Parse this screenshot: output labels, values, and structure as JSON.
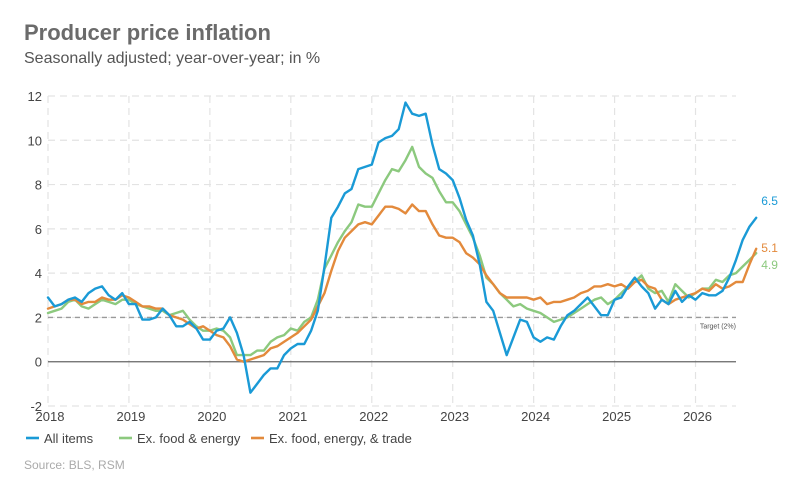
{
  "header": {
    "title": "Producer price inflation",
    "subtitle": "Seasonally adjusted; year-over-year; in %"
  },
  "source": "Source: BLS, RSM",
  "colors": {
    "all_items": "#1a9ad6",
    "ex_food_energy": "#8cc97e",
    "ex_food_energy_trade": "#e38a3c",
    "grid": "#e3e3e3",
    "zero_line": "#666666",
    "target_line": "#9a9a9a"
  },
  "chart_data": {
    "type": "line",
    "title": "Producer price inflation",
    "subtitle": "Seasonally adjusted; year-over-year; in %",
    "xlabel": "",
    "ylabel": "",
    "x_start": "2018-01",
    "x_frequency": "monthly",
    "xlim": [
      2018.0,
      2026.5
    ],
    "ylim": [
      -2,
      12
    ],
    "x_ticks": [
      "2018",
      "2019",
      "2020",
      "2021",
      "2022",
      "2023",
      "2024",
      "2025",
      "2026"
    ],
    "y_ticks": [
      "-2",
      "0",
      "2",
      "4",
      "6",
      "8",
      "10",
      "12"
    ],
    "grid": "dashed",
    "legend_position": "bottom-left",
    "reference_line": {
      "value": 2,
      "label": "Target (2%)"
    },
    "series": [
      {
        "name": "All items",
        "color": "#1a9ad6",
        "end_label": "6.5",
        "values": [
          2.9,
          2.5,
          2.6,
          2.8,
          2.9,
          2.7,
          3.1,
          3.3,
          3.4,
          3.0,
          2.8,
          3.1,
          2.6,
          2.6,
          1.9,
          1.9,
          2.0,
          2.4,
          2.1,
          1.6,
          1.6,
          1.8,
          1.5,
          1.0,
          1.0,
          1.4,
          1.5,
          2.0,
          1.3,
          0.3,
          -1.4,
          -1.0,
          -0.6,
          -0.3,
          -0.3,
          0.3,
          0.6,
          0.8,
          0.8,
          1.4,
          2.3,
          4.3,
          6.5,
          7.0,
          7.6,
          7.8,
          8.7,
          8.8,
          8.9,
          9.9,
          10.1,
          10.2,
          10.5,
          11.7,
          11.2,
          11.1,
          11.2,
          9.8,
          8.7,
          8.5,
          8.2,
          7.4,
          6.4,
          5.7,
          4.4,
          2.7,
          2.3,
          1.3,
          0.3,
          1.1,
          1.9,
          1.8,
          1.1,
          0.9,
          1.1,
          1.0,
          1.6,
          2.1,
          2.3,
          2.6,
          2.9,
          2.5,
          2.1,
          2.1,
          2.8,
          2.9,
          3.4,
          3.8,
          3.4,
          3.1,
          2.4,
          2.8,
          2.6,
          3.2,
          2.7,
          3.0,
          2.8,
          3.1,
          3.0,
          3.0,
          3.2,
          3.8,
          4.6,
          5.5,
          6.1,
          6.5
        ]
      },
      {
        "name": "Ex. food & energy",
        "color": "#8cc97e",
        "end_label": "4.9",
        "values": [
          2.2,
          2.3,
          2.4,
          2.7,
          2.8,
          2.5,
          2.4,
          2.6,
          2.8,
          2.7,
          2.6,
          2.8,
          2.8,
          2.6,
          2.5,
          2.4,
          2.3,
          2.3,
          2.1,
          2.2,
          2.3,
          1.9,
          1.6,
          1.4,
          1.4,
          1.5,
          1.4,
          1.1,
          0.3,
          0.3,
          0.3,
          0.5,
          0.5,
          0.9,
          1.1,
          1.2,
          1.5,
          1.4,
          1.8,
          2.0,
          2.8,
          4.2,
          4.8,
          5.4,
          5.9,
          6.3,
          7.1,
          7.0,
          7.0,
          7.6,
          8.2,
          8.7,
          8.6,
          9.1,
          9.7,
          8.8,
          8.5,
          8.3,
          7.7,
          7.2,
          7.2,
          6.8,
          6.2,
          5.6,
          4.8,
          3.8,
          3.5,
          3.1,
          2.8,
          2.5,
          2.6,
          2.4,
          2.3,
          2.2,
          2.0,
          1.8,
          1.9,
          2.0,
          2.2,
          2.4,
          2.6,
          2.8,
          2.9,
          2.6,
          2.8,
          3.1,
          3.4,
          3.6,
          3.9,
          3.3,
          3.1,
          3.2,
          2.7,
          3.5,
          3.2,
          2.9,
          3.1,
          3.3,
          3.3,
          3.7,
          3.6,
          3.9,
          4.0,
          4.3,
          4.6,
          4.9
        ]
      },
      {
        "name": "Ex. food, energy, & trade",
        "color": "#e38a3c",
        "end_label": "5.1",
        "values": [
          2.4,
          2.5,
          2.6,
          2.8,
          2.8,
          2.6,
          2.7,
          2.7,
          2.9,
          2.8,
          2.8,
          3.0,
          2.9,
          2.7,
          2.5,
          2.5,
          2.4,
          2.4,
          2.1,
          2.0,
          1.9,
          1.7,
          1.5,
          1.6,
          1.4,
          1.2,
          1.1,
          0.7,
          0.1,
          0.0,
          0.1,
          0.2,
          0.3,
          0.6,
          0.7,
          0.9,
          1.1,
          1.3,
          1.6,
          1.9,
          2.5,
          3.1,
          4.1,
          5.0,
          5.6,
          5.9,
          6.2,
          6.3,
          6.2,
          6.6,
          7.0,
          7.0,
          6.9,
          6.7,
          7.1,
          6.8,
          6.8,
          6.2,
          5.7,
          5.6,
          5.6,
          5.4,
          4.9,
          4.7,
          4.4,
          3.9,
          3.5,
          3.1,
          2.9,
          2.9,
          2.9,
          2.9,
          2.8,
          2.9,
          2.6,
          2.7,
          2.7,
          2.8,
          2.9,
          3.1,
          3.2,
          3.4,
          3.4,
          3.5,
          3.4,
          3.5,
          3.3,
          3.6,
          3.7,
          3.4,
          3.3,
          2.8,
          2.6,
          2.8,
          2.9,
          3.0,
          3.1,
          3.3,
          3.2,
          3.5,
          3.3,
          3.4,
          3.6,
          3.6,
          4.4,
          5.1
        ]
      }
    ]
  }
}
